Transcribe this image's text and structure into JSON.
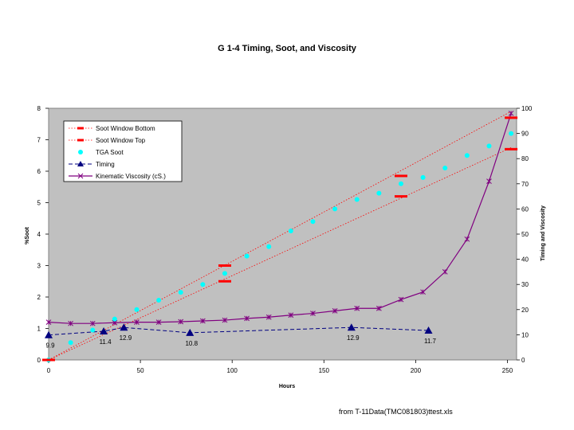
{
  "source_note": "from T-11Data(TMC081803)ttest.xls",
  "chart_data": {
    "type": "line",
    "title": "G 1-4 Timing, Soot, and Viscosity",
    "xlabel": "Hours",
    "ylabel_left": "%Soot",
    "ylabel_right": "Timing and Viscosity",
    "xlim": [
      0,
      255
    ],
    "ylim_left": [
      0,
      8
    ],
    "ylim_right": [
      0,
      100
    ],
    "x_ticks": [
      "0",
      "50",
      "100",
      "150",
      "200",
      "250"
    ],
    "y_ticks_left": [
      "0",
      "1",
      "2",
      "3",
      "4",
      "5",
      "6",
      "7",
      "8"
    ],
    "y_ticks_right": [
      "0",
      "10",
      "20",
      "30",
      "40",
      "50",
      "60",
      "70",
      "80",
      "90",
      "100"
    ],
    "grid": false,
    "legend_position": "top-left",
    "plot_background": "#c0c0c0",
    "series": [
      {
        "name": "Soot Window Bottom",
        "axis": "left",
        "color": "#ff0000",
        "style": "marker-dash",
        "x": [
          0,
          96,
          192,
          252
        ],
        "y": [
          0.0,
          2.5,
          5.2,
          6.7
        ],
        "trend": {
          "x": [
            0,
            252
          ],
          "y": [
            0.0,
            6.75
          ]
        }
      },
      {
        "name": "Soot Window Top",
        "axis": "left",
        "color": "#ff0000",
        "style": "marker-dash",
        "x": [
          0,
          96,
          192,
          252
        ],
        "y": [
          0.0,
          3.0,
          5.85,
          7.7
        ],
        "trend": {
          "x": [
            0,
            252
          ],
          "y": [
            0.0,
            7.9
          ]
        }
      },
      {
        "name": "TGA Soot",
        "axis": "left",
        "color": "#00ffff",
        "style": "points",
        "x": [
          0,
          12,
          24,
          36,
          48,
          60,
          72,
          84,
          96,
          108,
          120,
          132,
          144,
          156,
          168,
          180,
          192,
          204,
          216,
          228,
          240,
          252
        ],
        "y": [
          0.0,
          0.55,
          0.95,
          1.3,
          1.6,
          1.9,
          2.15,
          2.4,
          2.75,
          3.3,
          3.6,
          4.1,
          4.4,
          4.8,
          5.1,
          5.3,
          5.6,
          5.8,
          6.1,
          6.5,
          6.8,
          7.2
        ]
      },
      {
        "name": "Timing",
        "axis": "right",
        "color": "#000080",
        "style": "dash-triangle",
        "x": [
          0,
          30,
          41,
          77,
          165,
          207
        ],
        "y": [
          9.9,
          11.4,
          12.9,
          10.8,
          12.9,
          11.7
        ],
        "labels": [
          "9.9",
          "11.4",
          "12.9",
          "10.8",
          "12.9",
          "11.7"
        ]
      },
      {
        "name": "Kinematic Viscosity (cS.)",
        "axis": "right",
        "color": "#800080",
        "style": "line-star",
        "x": [
          0,
          12,
          24,
          36,
          48,
          60,
          72,
          84,
          96,
          108,
          120,
          132,
          144,
          156,
          168,
          180,
          192,
          204,
          216,
          228,
          240,
          252
        ],
        "y": [
          15.0,
          14.5,
          14.5,
          14.8,
          15.0,
          15.0,
          15.2,
          15.5,
          15.8,
          16.5,
          17.0,
          17.8,
          18.5,
          19.5,
          20.5,
          20.5,
          24.0,
          27.0,
          35.0,
          48.0,
          71.0,
          98.0
        ]
      }
    ]
  }
}
